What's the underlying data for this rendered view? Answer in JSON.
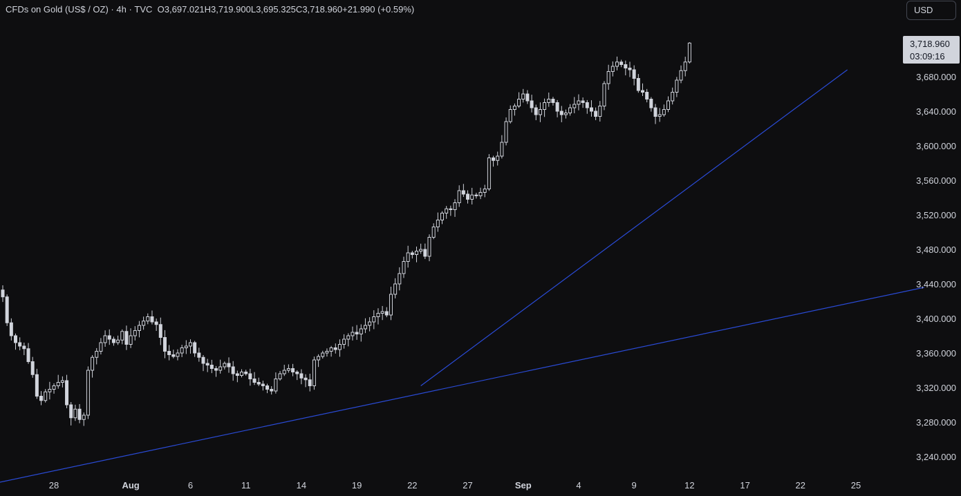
{
  "header": {
    "instrument": "CFDs on Gold (US$ / OZ)",
    "interval": "4h",
    "source": "TVC",
    "open_label": "O",
    "open": "3,697.021",
    "high_label": "H",
    "high": "3,719.900",
    "low_label": "L",
    "low": "3,695.325",
    "close_label": "C",
    "close": "3,718.960",
    "change": "+21.990 (+0.59%)"
  },
  "currency_button": "USD",
  "price_tag": {
    "price": "3,718.960",
    "countdown": "03:09:16"
  },
  "colors": {
    "background": "#0e0e10",
    "candle": "#d1d4dc",
    "trendline": "#2a4bd7",
    "text": "#d1d4dc",
    "price_tag_bg": "#d1d4dc",
    "price_tag_text": "#131722"
  },
  "chart_data": {
    "type": "candlestick",
    "y_axis": {
      "ticks": [
        "3,240.000",
        "3,280.000",
        "3,320.000",
        "3,360.000",
        "3,400.000",
        "3,440.000",
        "3,480.000",
        "3,520.000",
        "3,560.000",
        "3,600.000",
        "3,640.000",
        "3,680.000"
      ],
      "tick_values": [
        3240,
        3280,
        3320,
        3360,
        3400,
        3440,
        3480,
        3520,
        3560,
        3600,
        3640,
        3680
      ],
      "range": [
        3210,
        3755
      ],
      "position": "right"
    },
    "x_axis": {
      "ticks": [
        "28",
        "Aug",
        "6",
        "11",
        "14",
        "19",
        "22",
        "27",
        "Sep",
        "4",
        "9",
        "12",
        "17",
        "22",
        "25"
      ],
      "tick_bars": [
        12,
        30,
        44,
        57,
        70,
        83,
        96,
        109,
        122,
        135,
        148,
        161,
        174,
        187,
        200
      ]
    },
    "grid": false,
    "close_series": [
      3425,
      3395,
      3380,
      3372,
      3368,
      3365,
      3350,
      3335,
      3310,
      3305,
      3315,
      3318,
      3322,
      3326,
      3328,
      3300,
      3285,
      3295,
      3283,
      3288,
      3340,
      3355,
      3362,
      3372,
      3380,
      3376,
      3372,
      3375,
      3385,
      3370,
      3380,
      3386,
      3392,
      3397,
      3402,
      3396,
      3393,
      3378,
      3362,
      3358,
      3356,
      3360,
      3366,
      3368,
      3372,
      3360,
      3355,
      3348,
      3346,
      3342,
      3340,
      3344,
      3348,
      3344,
      3336,
      3334,
      3338,
      3336,
      3330,
      3326,
      3324,
      3322,
      3318,
      3316,
      3330,
      3336,
      3340,
      3342,
      3338,
      3336,
      3331,
      3329,
      3322,
      3352,
      3356,
      3360,
      3362,
      3366,
      3364,
      3370,
      3376,
      3380,
      3384,
      3382,
      3388,
      3392,
      3396,
      3402,
      3406,
      3408,
      3404,
      3428,
      3440,
      3452,
      3466,
      3476,
      3474,
      3478,
      3480,
      3472,
      3494,
      3506,
      3514,
      3522,
      3527,
      3526,
      3534,
      3548,
      3544,
      3538,
      3543,
      3542,
      3546,
      3550,
      3586,
      3583,
      3588,
      3604,
      3628,
      3642,
      3646,
      3654,
      3660,
      3652,
      3644,
      3636,
      3642,
      3650,
      3654,
      3650,
      3640,
      3636,
      3638,
      3644,
      3648,
      3652,
      3650,
      3644,
      3640,
      3634,
      3646,
      3672,
      3686,
      3692,
      3697,
      3694,
      3690,
      3688,
      3678,
      3664,
      3662,
      3654,
      3644,
      3634,
      3636,
      3642,
      3652,
      3662,
      3676,
      3687,
      3697,
      3718.96
    ],
    "last": {
      "open": 3697.021,
      "high": 3719.9,
      "low": 3695.325,
      "close": 3718.96,
      "change": 21.99,
      "change_pct": 0.59
    },
    "trendlines": [
      {
        "from": {
          "bar": -1,
          "price": 3210
        },
        "to": {
          "bar": 216,
          "price": 3436
        }
      },
      {
        "from": {
          "bar": 98,
          "price": 3322
        },
        "to": {
          "bar": 198,
          "price": 3688
        }
      }
    ]
  }
}
